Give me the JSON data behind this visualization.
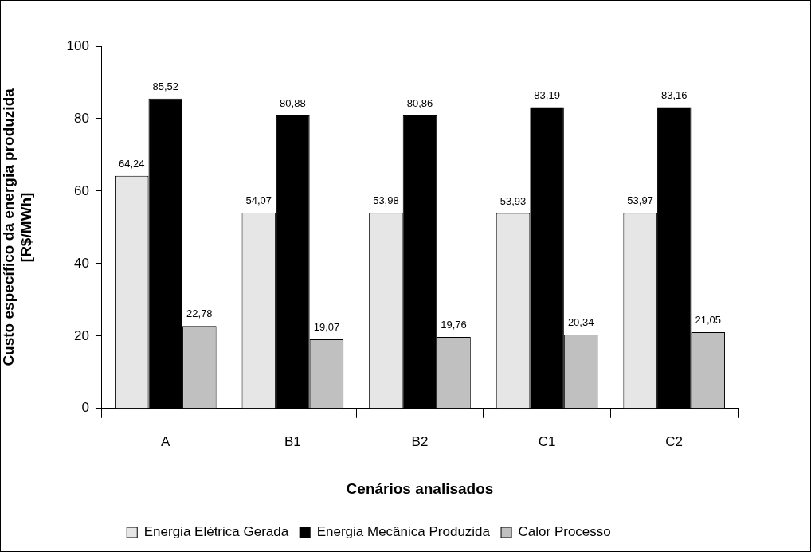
{
  "chart_data": {
    "type": "bar",
    "xlabel": "Cenários analisados",
    "ylabel": "Custo específico da energia produzida\n[R$/MWh]",
    "categories": [
      "A",
      "B1",
      "B2",
      "C1",
      "C2"
    ],
    "series": [
      {
        "name": "Energia Elétrica Gerada",
        "color": "#e6e6e6",
        "values": [
          64.24,
          54.07,
          53.98,
          53.93,
          53.97
        ],
        "value_labels": [
          "64,24",
          "54,07",
          "53,98",
          "53,93",
          "53,97"
        ]
      },
      {
        "name": "Energia Mecânica Produzida",
        "color": "#000000",
        "values": [
          85.52,
          80.88,
          80.86,
          83.19,
          83.16
        ],
        "value_labels": [
          "85,52",
          "80,88",
          "80,86",
          "83,19",
          "83,16"
        ]
      },
      {
        "name": "Calor Processo",
        "color": "#c0c0c0",
        "values": [
          22.78,
          19.07,
          19.76,
          20.34,
          21.05
        ],
        "value_labels": [
          "22,78",
          "19,07",
          "19,76",
          "20,34",
          "21,05"
        ]
      }
    ],
    "ylim": [
      0,
      100
    ],
    "yticks": [
      0,
      20,
      40,
      60,
      80,
      100
    ],
    "grid": false,
    "legend": "bottom"
  }
}
